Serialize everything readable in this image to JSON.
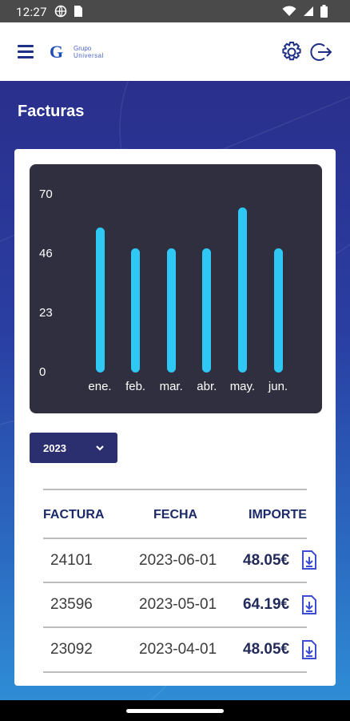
{
  "status": {
    "time": "12:27"
  },
  "header": {
    "logo_text_1": "Grupo",
    "logo_text_2": "Universal"
  },
  "page": {
    "title": "Facturas"
  },
  "chart_data": {
    "type": "bar",
    "categories": [
      "ene.",
      "feb.",
      "mar.",
      "abr.",
      "may.",
      "jun."
    ],
    "values": [
      57,
      49,
      49,
      49,
      65,
      49
    ],
    "yticks": [
      "70",
      "46",
      "23",
      "0"
    ],
    "ylim": [
      0,
      70
    ],
    "bar_color": "#2fc8f5",
    "background": "#2f2f3f"
  },
  "year_select": {
    "value": "2023"
  },
  "invoices": {
    "headers": [
      "FACTURA",
      "FECHA",
      "IMPORTE"
    ],
    "rows": [
      {
        "factura": "24101",
        "fecha": "2023-06-01",
        "importe": "48.05€"
      },
      {
        "factura": "23596",
        "fecha": "2023-05-01",
        "importe": "64.19€"
      },
      {
        "factura": "23092",
        "fecha": "2023-04-01",
        "importe": "48.05€"
      }
    ]
  },
  "colors": {
    "brand": "#1f2f86",
    "accent": "#3d4bd6"
  }
}
